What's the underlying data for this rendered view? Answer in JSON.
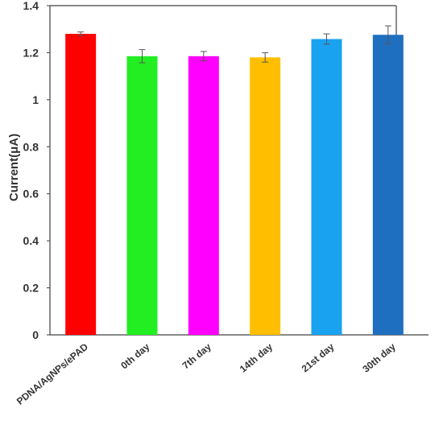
{
  "chart_data": {
    "type": "bar",
    "title": "",
    "xlabel": "",
    "ylabel": "Current(μA)",
    "ylim": [
      0,
      1.4
    ],
    "yticks": [
      "0",
      "0.2",
      "0.4",
      "0.6",
      "0.8",
      "1",
      "1.2",
      "1.4"
    ],
    "categories": [
      "PDNA/AgNPs/ePAD",
      "0th day",
      "7th day",
      "14th day",
      "21st day",
      "30th day"
    ],
    "values": [
      1.28,
      1.185,
      1.185,
      1.18,
      1.258,
      1.276
    ],
    "errors": [
      0.008,
      0.028,
      0.02,
      0.02,
      0.022,
      0.038
    ],
    "colors": [
      "#ff0000",
      "#22ee22",
      "#ff00ff",
      "#ffbf00",
      "#19a2f0",
      "#1f6fc0"
    ],
    "grid": false,
    "legend": "none"
  }
}
